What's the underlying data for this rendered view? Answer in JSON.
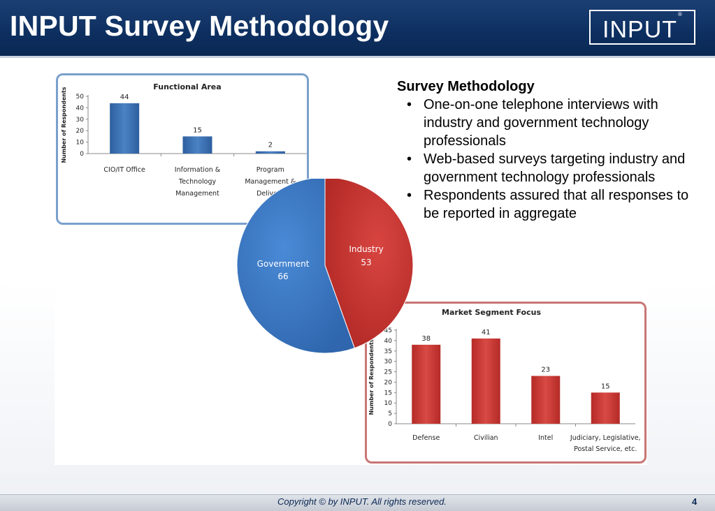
{
  "header": {
    "title": "INPUT Survey Methodology",
    "logo_text": "INPUT",
    "logo_mark": "®"
  },
  "survey": {
    "heading": "Survey Methodology",
    "bullets": [
      "One-on-one telephone interviews with industry and government technology professionals",
      " Web-based surveys targeting industry and government technology professionals",
      "Respondents assured that all responses to be reported in aggregate"
    ]
  },
  "footer": {
    "copyright": "Copyright © by INPUT. All rights reserved.",
    "page": "4"
  },
  "colors": {
    "header": "#0d2f60",
    "blue_series": "#3b6fb3",
    "red_series": "#c9302c",
    "pie_blue": "#3a79c8",
    "pie_red": "#c8322d"
  },
  "chart_data": [
    {
      "type": "bar",
      "title": "Functional Area",
      "ylabel": "Number of Respondents",
      "categories": [
        [
          "CIO/IT Office"
        ],
        [
          "Information &",
          "Technology",
          "Management"
        ],
        [
          "Program",
          "Management &",
          "Delivery"
        ]
      ],
      "values": [
        44,
        15,
        2
      ],
      "ylim": [
        0,
        50
      ],
      "yticks": [
        0,
        10,
        20,
        30,
        40,
        50
      ],
      "data_labels": true
    },
    {
      "type": "pie",
      "labels": [
        "Government",
        "Industry"
      ],
      "values": [
        66,
        53
      ]
    },
    {
      "type": "bar",
      "title": "Market Segment Focus",
      "ylabel": "Number of Respondents",
      "categories": [
        [
          "Defense"
        ],
        [
          "Civilian"
        ],
        [
          "Intel"
        ],
        [
          "Judiciary, Legislative,",
          "Postal Service, etc."
        ]
      ],
      "values": [
        38,
        41,
        23,
        15
      ],
      "ylim": [
        0,
        45
      ],
      "yticks": [
        0,
        5,
        10,
        15,
        20,
        25,
        30,
        35,
        40,
        45
      ],
      "data_labels": true
    }
  ]
}
